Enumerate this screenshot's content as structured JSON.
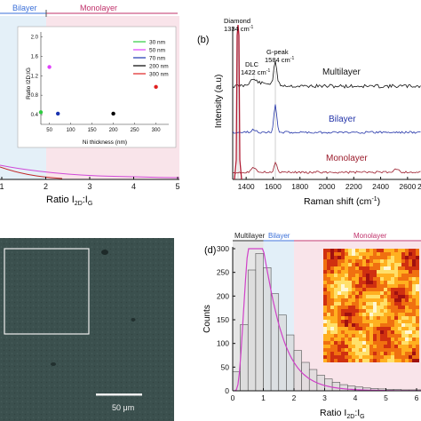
{
  "panel_a": {
    "band_labels": {
      "bilayer": "Bilayer",
      "monolayer": "Monolayer"
    },
    "x_axis_label": "Ratio I",
    "x_axis_sub_2d": "2D",
    "x_axis_sub_g": "G",
    "x_ticks": [
      "1",
      "2",
      "3",
      "4",
      "5"
    ],
    "inset": {
      "y_label": "Ratio I2D:IG",
      "x_label": "Ni thickness (nm)",
      "y_ticks": [
        "0.4",
        "0.8",
        "1.2",
        "1.6",
        "2.0"
      ],
      "x_ticks": [
        "50",
        "100",
        "150",
        "200",
        "250",
        "300"
      ],
      "legend": [
        {
          "label": "30 nm",
          "color": "#2ecc40"
        },
        {
          "label": "50 nm",
          "color": "#e040fb"
        },
        {
          "label": "70 nm",
          "color": "#1a33b0"
        },
        {
          "label": "200 nm",
          "color": "#000000"
        },
        {
          "label": "300 nm",
          "color": "#e02020"
        }
      ]
    }
  },
  "panel_b": {
    "letter": "(b)",
    "y_axis_label": "Intensity (a.u)",
    "x_axis_label": "Raman shift (cm",
    "x_axis_sup": "-1",
    "x_axis_close": ")",
    "x_ticks": [
      "1400",
      "1600",
      "1800",
      "2000",
      "2200",
      "2400",
      "2600"
    ],
    "x_ticks_partial": [
      "26"
    ],
    "diamond_label": "Diamond",
    "diamond_value": "1334 cm",
    "dlc_label": "DLC",
    "dlc_value": "1422 cm",
    "gpeak_label": "G-peak",
    "gpeak_value": "1584 cm",
    "cm_sup": "-1",
    "trace_labels": {
      "multilayer": "Multilayer",
      "bilayer": "Bilayer",
      "monolayer": "Monolayer"
    }
  },
  "panel_c": {
    "scale_label": "50 μm"
  },
  "panel_d": {
    "letter": "(d)",
    "y_axis_label": "Counts",
    "x_axis_label": "Ratio I",
    "x_axis_sub_2d": "2D",
    "x_axis_sub_g": "G",
    "band_labels": {
      "multilayer": "Multilayer",
      "bilayer": "Bilayer",
      "monolayer": "Monolayer"
    },
    "y_ticks": [
      "0",
      "50",
      "100",
      "150",
      "200",
      "250",
      "300"
    ],
    "x_ticks": [
      "0",
      "1",
      "2",
      "3",
      "4",
      "5",
      "6"
    ],
    "histogram": {
      "bin_width": 0.25,
      "x_start": 0,
      "counts": [
        40,
        140,
        255,
        290,
        260,
        205,
        160,
        118,
        85,
        60,
        45,
        33,
        25,
        18,
        13,
        10,
        8,
        6,
        5,
        4,
        3,
        3,
        2,
        2,
        2,
        1,
        1,
        1
      ]
    }
  }
}
